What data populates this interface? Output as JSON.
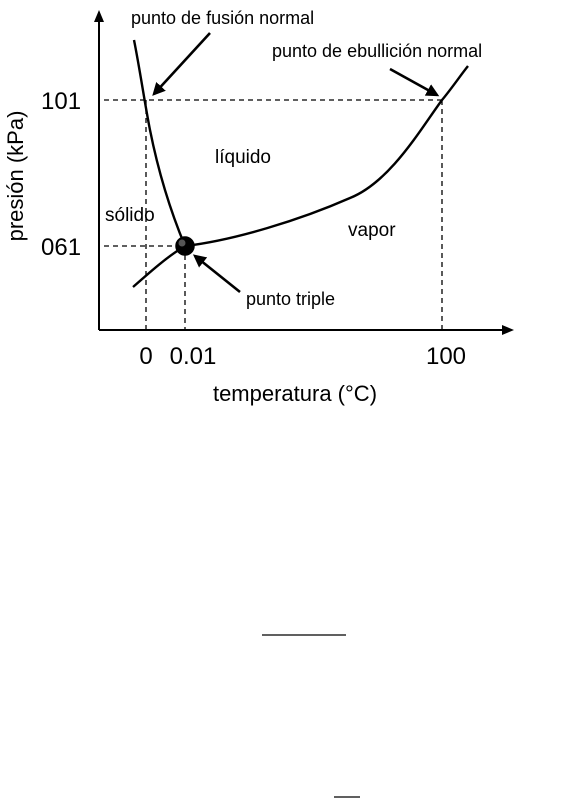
{
  "diagram": {
    "annotations": {
      "melting": "punto de fusión normal",
      "boiling": "punto de ebullición normal",
      "triple": "punto triple"
    },
    "regions": {
      "liquid": "líquido",
      "solid": "sólido",
      "vapor": "vapor"
    },
    "y_axis": {
      "label": "presión (kPa)",
      "ticks": [
        "101",
        "061"
      ]
    },
    "x_axis": {
      "label": "temperatura (°C)",
      "ticks": [
        "0",
        "0.01",
        "100"
      ]
    }
  }
}
